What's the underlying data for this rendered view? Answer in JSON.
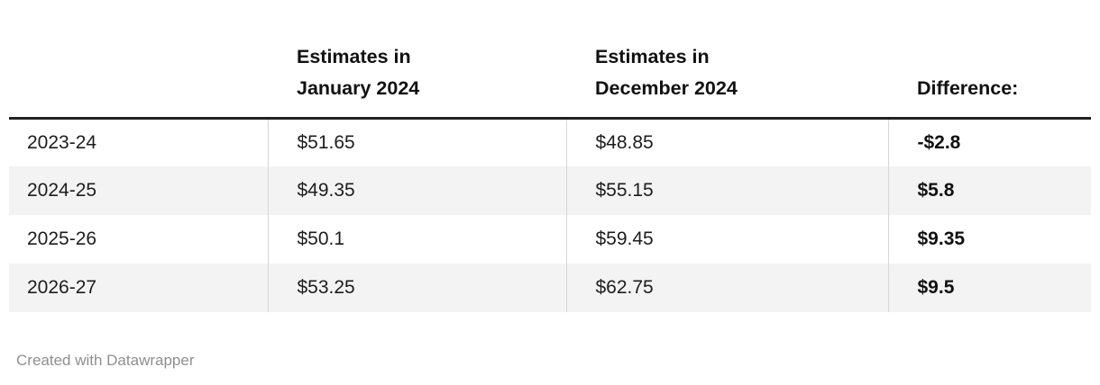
{
  "table": {
    "columns": [
      {
        "label": ""
      },
      {
        "label": "Estimates in\nJanuary 2024"
      },
      {
        "label": "Estimates in\nDecember 2024"
      },
      {
        "label": "Difference:"
      }
    ],
    "rows": [
      {
        "label": "2023-24",
        "jan": "$51.65",
        "dec": "$48.85",
        "diff": "-$2.8"
      },
      {
        "label": "2024-25",
        "jan": "$49.35",
        "dec": "$55.15",
        "diff": "$5.8"
      },
      {
        "label": "2025-26",
        "jan": "$50.1",
        "dec": "$59.45",
        "diff": "$9.35"
      },
      {
        "label": "2026-27",
        "jan": "$53.25",
        "dec": "$62.75",
        "diff": "$9.5"
      }
    ]
  },
  "footer": {
    "credit": "Created with Datawrapper"
  },
  "colors": {
    "header_rule": "#222222",
    "row_alt_bg": "#f3f3f3",
    "column_divider": "#d6d6d6",
    "footer_text": "#8f8f8f"
  },
  "chart_data": {
    "type": "table",
    "columns": [
      "",
      "Estimates in January 2024",
      "Estimates in December 2024",
      "Difference:"
    ],
    "rows": [
      [
        "2023-24",
        51.65,
        48.85,
        -2.8
      ],
      [
        "2024-25",
        49.35,
        55.15,
        5.8
      ],
      [
        "2025-26",
        50.1,
        59.45,
        9.35
      ],
      [
        "2026-27",
        53.25,
        62.75,
        9.5
      ]
    ],
    "title": "",
    "notes": "Difference column shown in bold; rows alternate white and light gray; thick rule under header; credit line below table"
  }
}
